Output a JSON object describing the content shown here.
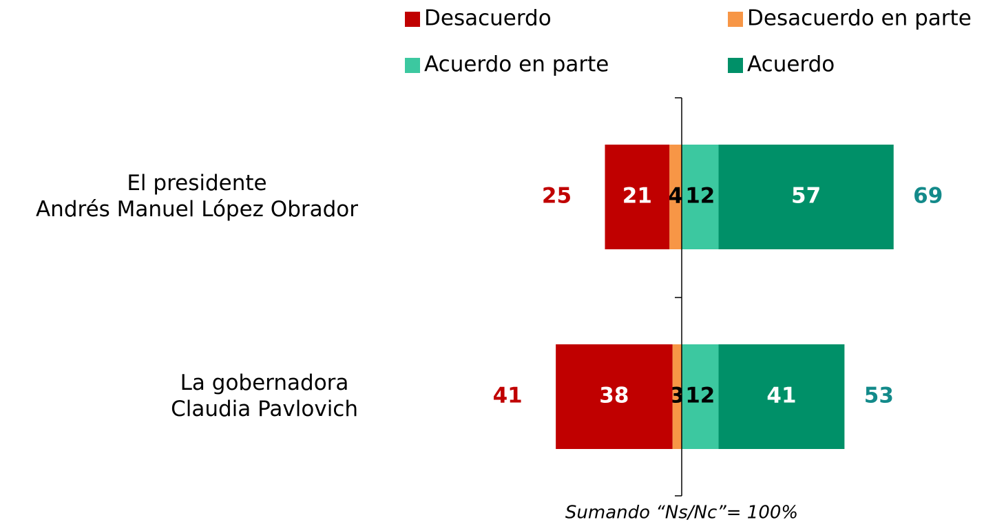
{
  "chart_data": {
    "type": "diverging-bar",
    "categories": [
      [
        "El presidente",
        "Andrés Manuel López Obrador"
      ],
      [
        "La gobernadora",
        "Claudia Pavlovich"
      ]
    ],
    "series": [
      {
        "name": "Desacuerdo",
        "color": "#c00000",
        "side": "left",
        "label_color": "#ffffff",
        "values": [
          21,
          38
        ]
      },
      {
        "name": "Desacuerdo en parte",
        "color": "#f79646",
        "side": "left",
        "label_color": "#000000",
        "values": [
          4,
          3
        ]
      },
      {
        "name": "Acuerdo en parte",
        "color": "#3cc8a0",
        "side": "right",
        "label_color": "#000000",
        "values": [
          12,
          12
        ]
      },
      {
        "name": "Acuerdo",
        "color": "#009068",
        "side": "right",
        "label_color": "#ffffff",
        "values": [
          57,
          41
        ]
      }
    ],
    "left_totals": {
      "color": "#c00000",
      "values": [
        25,
        41
      ]
    },
    "right_totals": {
      "color": "#138a8a",
      "values": [
        69,
        53
      ]
    },
    "note": "Sumando “Ns/Nc”= 100%"
  }
}
